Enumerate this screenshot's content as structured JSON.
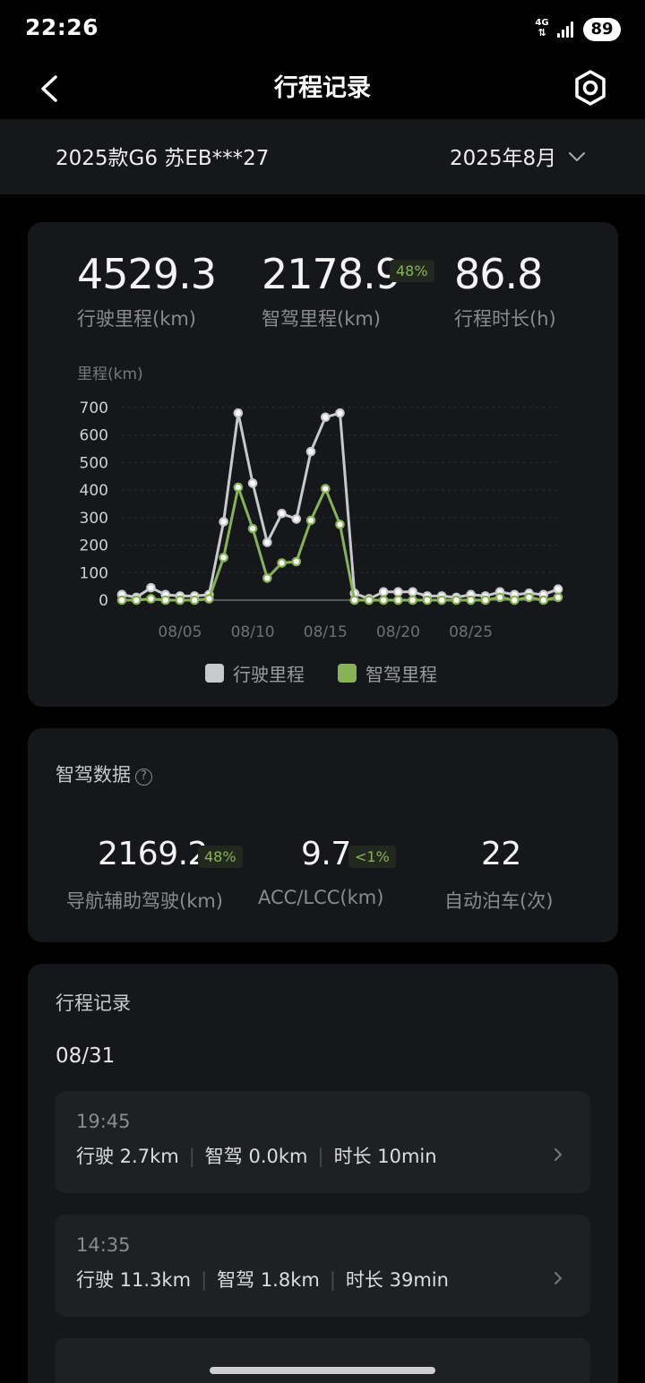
{
  "status_bar": {
    "time": "22:26",
    "network": "4G",
    "battery": "89"
  },
  "header": {
    "title": "行程记录"
  },
  "vehicle_bar": {
    "vehicle": "2025款G6 苏EB***27",
    "month": "2025年8月"
  },
  "summary": {
    "total_mileage": {
      "value": "4529.3",
      "label": "行驶里程(km)"
    },
    "smart_mileage": {
      "value": "2178.9",
      "label": "智驾里程(km)",
      "badge": "48%"
    },
    "duration": {
      "value": "86.8",
      "label": "行程时长(h)"
    }
  },
  "chart_data": {
    "type": "line",
    "ylabel": "里程(km)",
    "ylim": [
      0,
      700
    ],
    "yticks": [
      "700",
      "600",
      "500",
      "400",
      "300",
      "200",
      "100",
      "0"
    ],
    "xtick_labels": [
      "08/05",
      "08/10",
      "08/15",
      "08/20",
      "08/25"
    ],
    "x": [
      1,
      2,
      3,
      4,
      5,
      6,
      7,
      8,
      9,
      10,
      11,
      12,
      13,
      14,
      15,
      16,
      17,
      18,
      19,
      20,
      21,
      22,
      23,
      24,
      25,
      26,
      27,
      28,
      29,
      30,
      31
    ],
    "series": [
      {
        "name": "行驶里程",
        "color": "#c8c9cc",
        "values": [
          20,
          10,
          45,
          20,
          15,
          15,
          20,
          285,
          680,
          425,
          210,
          315,
          295,
          540,
          665,
          680,
          25,
          5,
          30,
          30,
          30,
          15,
          15,
          10,
          20,
          15,
          30,
          20,
          25,
          20,
          40
        ]
      },
      {
        "name": "智驾里程",
        "color": "#86b353",
        "values": [
          0,
          0,
          5,
          0,
          0,
          0,
          5,
          155,
          410,
          260,
          80,
          135,
          140,
          290,
          405,
          275,
          0,
          0,
          0,
          0,
          0,
          0,
          0,
          0,
          0,
          0,
          10,
          0,
          10,
          0,
          10
        ]
      }
    ],
    "legend_position": "bottom"
  },
  "driving_data": {
    "title": "智驾数据",
    "help_icon": "?",
    "nav_assist": {
      "value": "2169.2",
      "badge": "48%",
      "label": "导航辅助驾驶(km)"
    },
    "acc_lcc": {
      "value": "9.7",
      "badge": "<1%",
      "label": "ACC/LCC(km)"
    },
    "auto_parking": {
      "value": "22",
      "label": "自动泊车(次)"
    }
  },
  "trips": {
    "title": "行程记录",
    "date": "08/31",
    "items": [
      {
        "time": "19:45",
        "drive": "行驶 2.7km",
        "smart": "智驾 0.0km",
        "duration": "时长 10min"
      },
      {
        "time": "14:35",
        "drive": "行驶 11.3km",
        "smart": "智驾 1.8km",
        "duration": "时长 39min"
      }
    ]
  },
  "colors": {
    "accent_green": "#86b353",
    "gray_series": "#c8c9cc",
    "card_bg": "#16171a"
  }
}
